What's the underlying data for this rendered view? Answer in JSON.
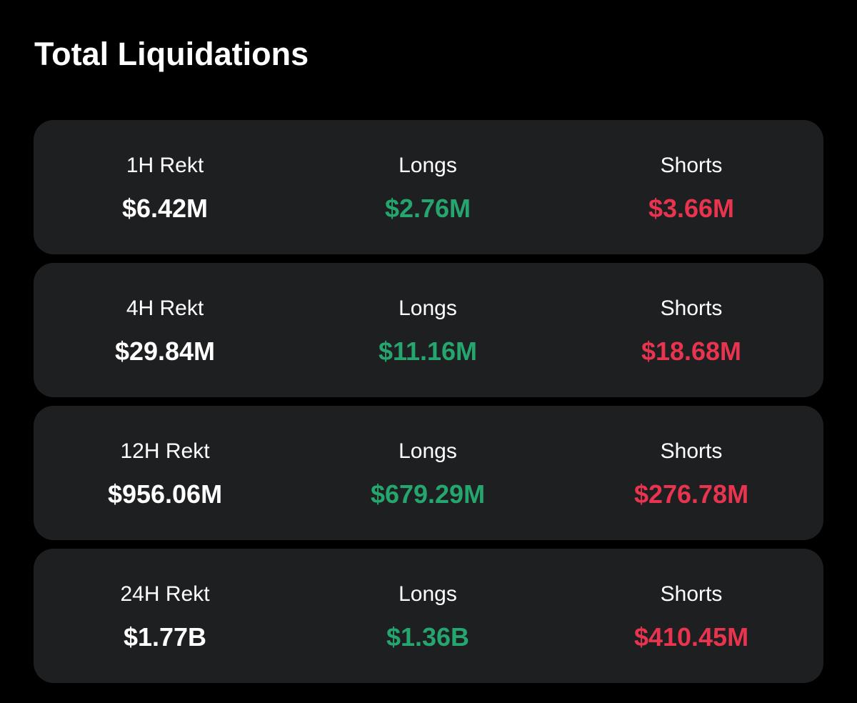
{
  "header": {
    "title": "Total Liquidations"
  },
  "colors": {
    "background": "#000000",
    "card": "#1d1f21",
    "longs": "#25a66f",
    "shorts": "#e8344e",
    "text": "#ffffff"
  },
  "rows": [
    {
      "period_label": "1H Rekt",
      "total": "$6.42M",
      "longs_label": "Longs",
      "longs": "$2.76M",
      "shorts_label": "Shorts",
      "shorts": "$3.66M"
    },
    {
      "period_label": "4H Rekt",
      "total": "$29.84M",
      "longs_label": "Longs",
      "longs": "$11.16M",
      "shorts_label": "Shorts",
      "shorts": "$18.68M"
    },
    {
      "period_label": "12H Rekt",
      "total": "$956.06M",
      "longs_label": "Longs",
      "longs": "$679.29M",
      "shorts_label": "Shorts",
      "shorts": "$276.78M"
    },
    {
      "period_label": "24H Rekt",
      "total": "$1.77B",
      "longs_label": "Longs",
      "longs": "$1.36B",
      "shorts_label": "Shorts",
      "shorts": "$410.45M"
    }
  ]
}
